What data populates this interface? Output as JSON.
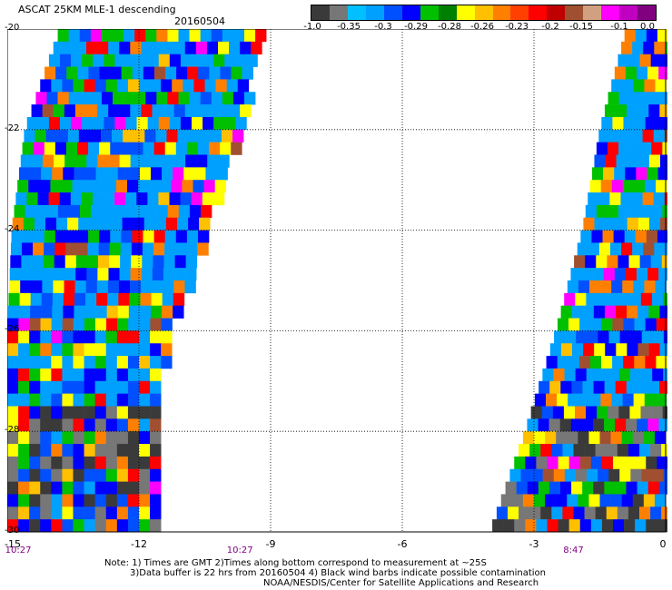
{
  "header": {
    "title": "ASCAT 25KM MLE-1 descending",
    "date": "20160504"
  },
  "colorbar": {
    "colors": [
      "#3a3a3a",
      "#777777",
      "#00c0ff",
      "#00a0ff",
      "#0050ff",
      "#0000ff",
      "#00c000",
      "#008000",
      "#ffff00",
      "#ffc000",
      "#ff8000",
      "#ff4000",
      "#ff0000",
      "#c00000",
      "#a05030",
      "#d0a080",
      "#ff00ff",
      "#c000c0",
      "#800080"
    ],
    "labels": [
      "-1.0",
      "-0.35",
      "-0.3",
      "-0.29",
      "-0.28",
      "-0.26",
      "-0.23",
      "-0.2",
      "-0.15",
      "-0.1",
      "0.0"
    ]
  },
  "axes": {
    "y_labels": [
      "-20",
      "-22",
      "-24",
      "-26",
      "-28",
      "-30"
    ],
    "x_labels": [
      "-15",
      "-12",
      "-9",
      "-6",
      "-3",
      "0"
    ],
    "xlim": [
      -15,
      0
    ],
    "ylim": [
      -30,
      -20
    ],
    "grid": true,
    "time_labels": [
      "10:27",
      "10:27",
      "8:47"
    ]
  },
  "swaths": {
    "left_edge": [
      [
        -20,
        -13.8
      ],
      [
        -22,
        -14.6
      ],
      [
        -24,
        -14.9
      ],
      [
        -26,
        -15
      ],
      [
        -28,
        -15
      ],
      [
        -30,
        -15
      ]
    ],
    "left_right_edge": [
      [
        -20,
        -9.2
      ],
      [
        -21,
        -9.5
      ],
      [
        -22,
        -9.7
      ],
      [
        -23,
        -10.1
      ],
      [
        -24,
        -10.5
      ],
      [
        -25,
        -10.9
      ],
      [
        -26,
        -11.3
      ],
      [
        -27,
        -11.6
      ],
      [
        -28,
        -11.5
      ],
      [
        -29,
        -11.6
      ],
      [
        -30,
        -11.6
      ]
    ],
    "right_left_edge": [
      [
        -20,
        -0.9
      ],
      [
        -22,
        -1.5
      ],
      [
        -24,
        -1.9
      ],
      [
        -26,
        -2.5
      ],
      [
        -28,
        -3.2
      ],
      [
        -30,
        -4.0
      ]
    ],
    "right_right_edge": [
      [
        -20,
        0
      ],
      [
        -30,
        0
      ]
    ]
  },
  "notes": {
    "line1": "Note: 1) Times are GMT 2)Times along bottom correspond to measurement at ~25S",
    "line2": "3)Data buffer is 22 hrs from 20160504 4) Black wind barbs indicate possible contamination",
    "line3": "NOAA/NESDIS/Center for Satellite Applications and Research"
  }
}
